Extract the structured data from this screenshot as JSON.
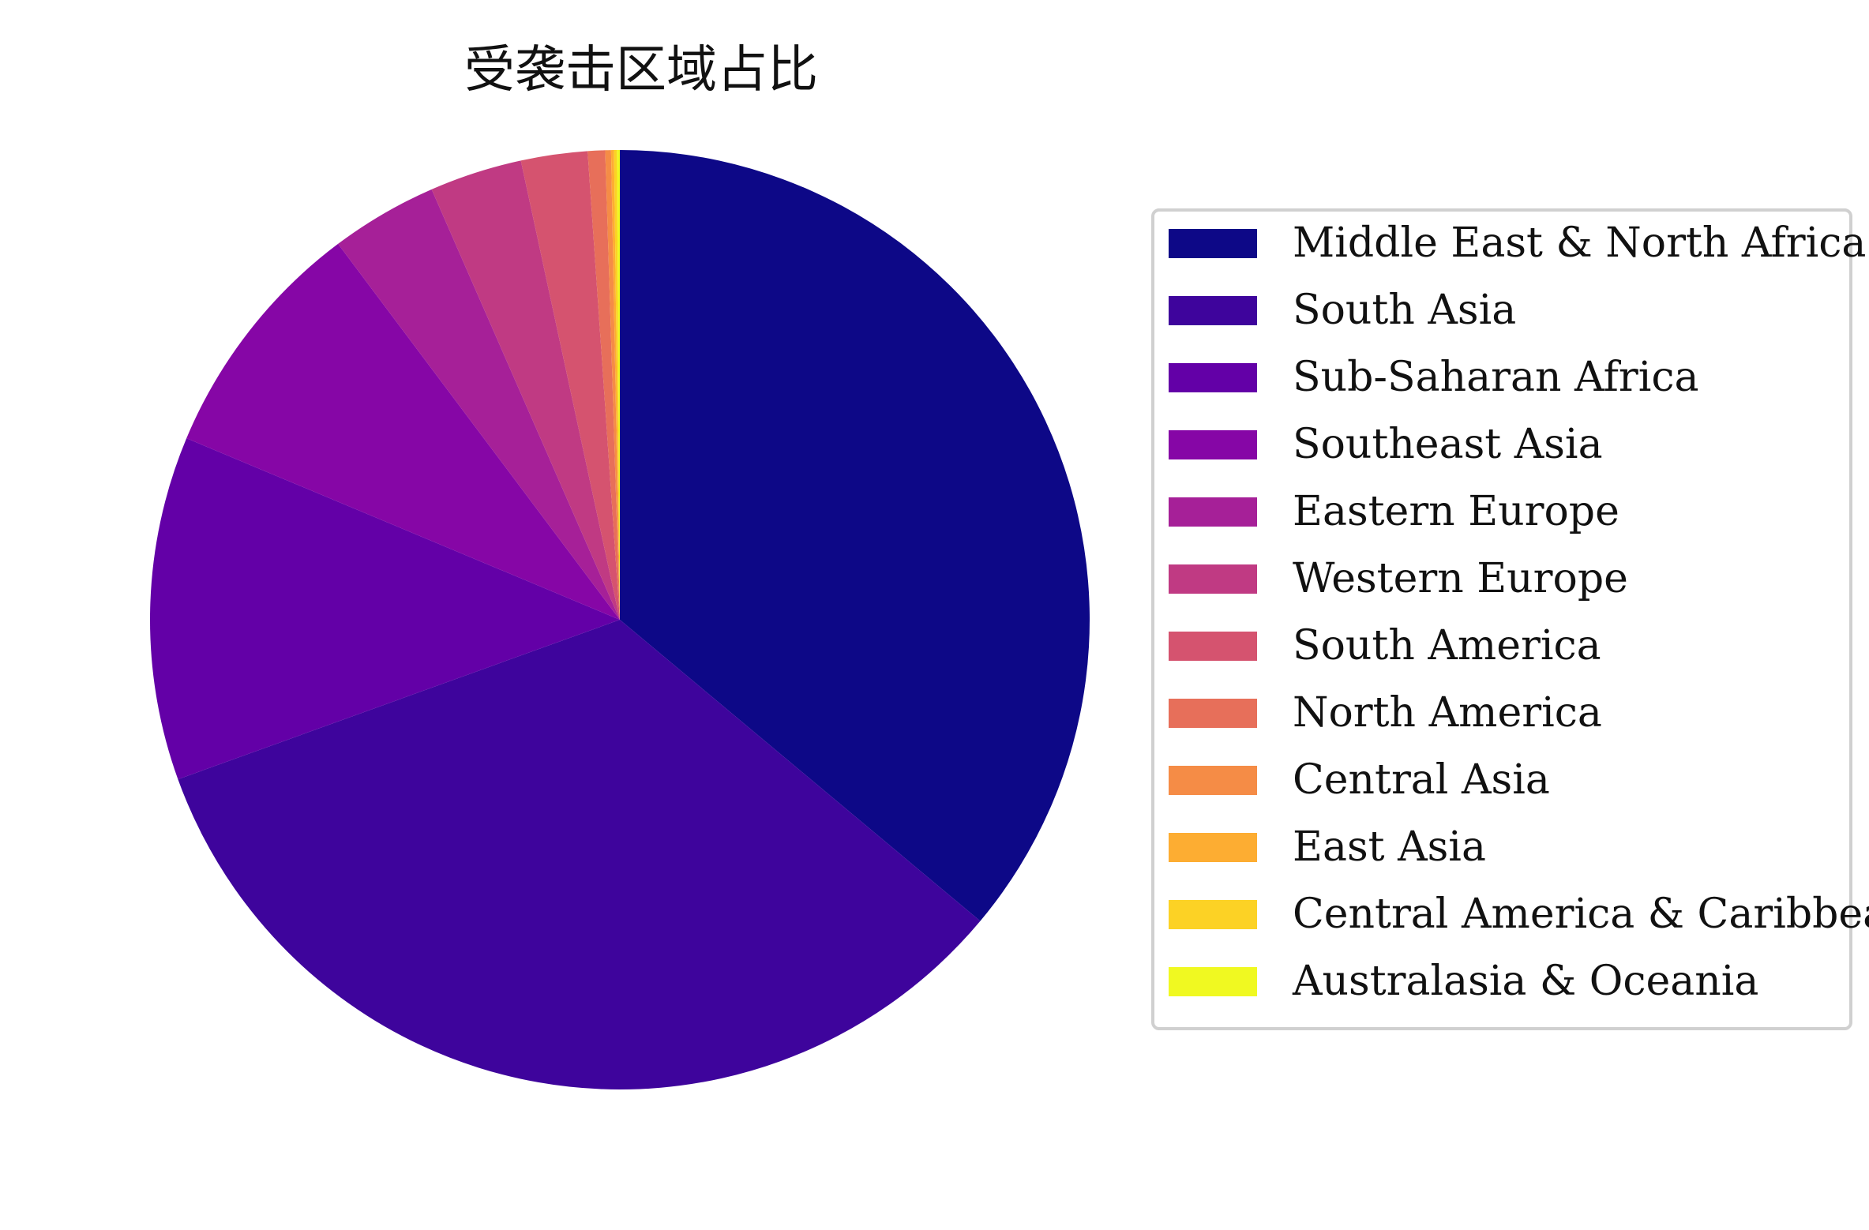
{
  "chart_data": {
    "type": "pie",
    "title": "受袭击区域占比",
    "start_angle_deg": 90,
    "direction": "clockwise",
    "legend_position": "right",
    "categories": [
      "Middle East & North Africa",
      "South Asia",
      "Sub-Saharan Africa",
      "Southeast Asia",
      "Eastern Europe",
      "Western Europe",
      "South America",
      "North America",
      "Central Asia",
      "East Asia",
      "Central America & Caribbean",
      "Australasia & Oceania"
    ],
    "values": [
      36.3,
      33.6,
      11.9,
      8.5,
      3.7,
      3.2,
      2.3,
      0.6,
      0.2,
      0.1,
      0.1,
      0.1
    ],
    "colors": [
      "#0d0887",
      "#3e049c",
      "#6300a7",
      "#8606a6",
      "#a62098",
      "#c03a83",
      "#d5536f",
      "#e76f5a",
      "#f58c46",
      "#fdad32",
      "#fcd225",
      "#f0f921"
    ]
  }
}
